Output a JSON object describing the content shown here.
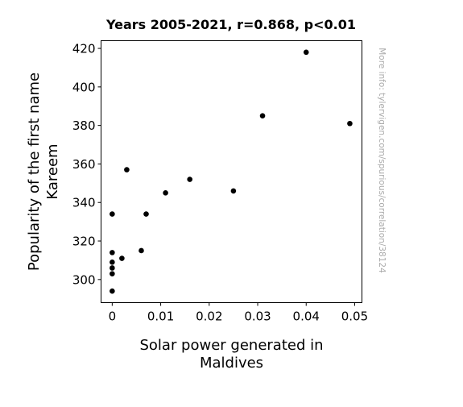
{
  "chart_data": {
    "type": "scatter",
    "title": "Years 2005-2021, r=0.868, p<0.01",
    "xlabel_lines": [
      "Solar power generated in",
      "Maldives"
    ],
    "ylabel_lines": [
      "Popularity of the first name",
      "Kareem"
    ],
    "xlim": [
      -0.0023,
      0.0515
    ],
    "ylim": [
      288,
      424
    ],
    "x_ticks": [
      0,
      0.01,
      0.02,
      0.03,
      0.04,
      0.05
    ],
    "x_tick_labels": [
      "0",
      "0.01",
      "0.02",
      "0.03",
      "0.04",
      "0.05"
    ],
    "y_ticks": [
      300,
      320,
      340,
      360,
      380,
      400,
      420
    ],
    "y_tick_labels": [
      "300",
      "320",
      "340",
      "360",
      "380",
      "400",
      "420"
    ],
    "grid": false,
    "marker_color": "#000000",
    "points": [
      {
        "x": 0.0,
        "y": 294
      },
      {
        "x": 0.0,
        "y": 303
      },
      {
        "x": 0.0,
        "y": 306
      },
      {
        "x": 0.0,
        "y": 309
      },
      {
        "x": 0.0,
        "y": 314
      },
      {
        "x": 0.0,
        "y": 334
      },
      {
        "x": 0.002,
        "y": 311
      },
      {
        "x": 0.003,
        "y": 357
      },
      {
        "x": 0.006,
        "y": 315
      },
      {
        "x": 0.007,
        "y": 334
      },
      {
        "x": 0.011,
        "y": 345
      },
      {
        "x": 0.016,
        "y": 352
      },
      {
        "x": 0.025,
        "y": 346
      },
      {
        "x": 0.031,
        "y": 385
      },
      {
        "x": 0.04,
        "y": 418
      },
      {
        "x": 0.049,
        "y": 381
      }
    ]
  },
  "watermark": "More info: tylervigen.com/spurious/correlation/38124"
}
